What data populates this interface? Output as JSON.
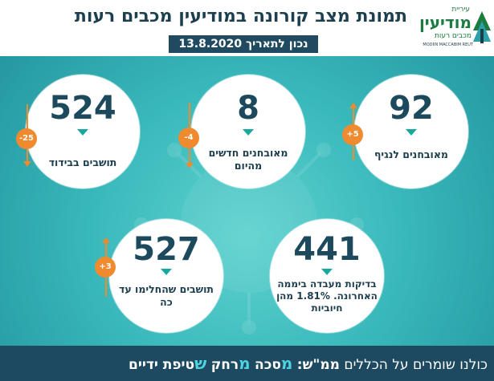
{
  "header": {
    "title": "תמונת מצב קורונה במודיעין מכבים רעות",
    "date_label": "נכון לתאריך 13.8.2020"
  },
  "logo": {
    "city": "עיריית",
    "name": "מודיעין",
    "sub": "מכבים רעות",
    "en": "MODIIN MACCABIM REUT"
  },
  "stats": [
    {
      "id": "diagnosed-carriers",
      "value": "92",
      "label": "מאובחנים לנגיף",
      "change": "+5",
      "direction": "up"
    },
    {
      "id": "new-diagnosed-today",
      "value": "8",
      "label": "מאובחנים חדשים מהיום",
      "change": "-4",
      "direction": "down"
    },
    {
      "id": "residents-isolation",
      "value": "524",
      "label": "תושבים בבידוד",
      "change": "-25",
      "direction": "down"
    },
    {
      "id": "lab-tests",
      "value": "441",
      "label": "בדיקות מעבדה ביממה האחרונה. 1.81% מהן חיוביות",
      "change": "",
      "direction": ""
    },
    {
      "id": "recovered",
      "value": "527",
      "label": "תושבים שהחלימו עד כה",
      "change": "+3",
      "direction": "up"
    }
  ],
  "footer": {
    "prefix": "כולנו שומרים על הכללים",
    "mamash": "ממ\"ש:",
    "m1": "מ",
    "w1": "סכה",
    "m2": "מ",
    "w2": "רחק",
    "s": "ש",
    "w3": "טיפת ידיים"
  },
  "colors": {
    "background": "#39b8bb",
    "circle": "#ffffff",
    "number": "#1c4a5c",
    "accent_triangle": "#18a8a0",
    "badge": "#ef8a2e",
    "footer": "#1d4a60",
    "date_box": "#1f4a60",
    "highlight": "#4fd3e0"
  }
}
